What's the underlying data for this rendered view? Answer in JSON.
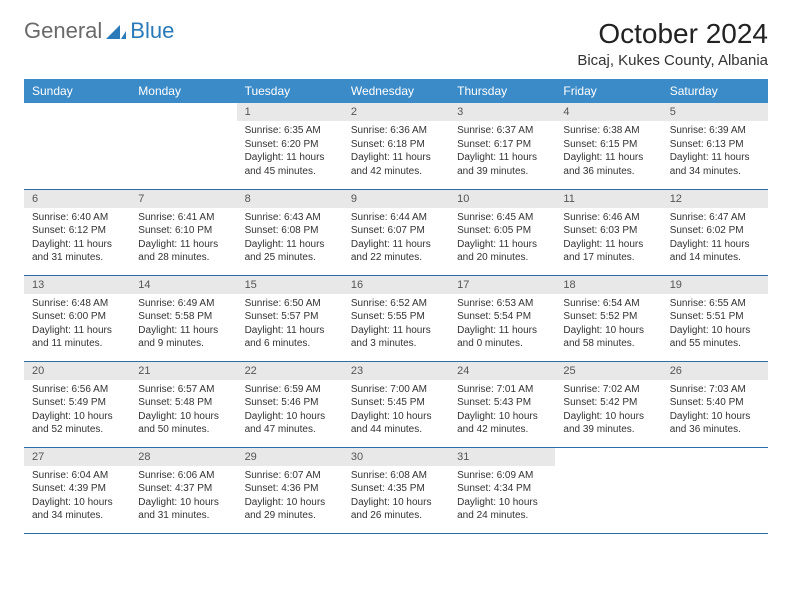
{
  "logo": {
    "part1": "General",
    "part2": "Blue"
  },
  "title": "October 2024",
  "location": "Bicaj, Kukes County, Albania",
  "colors": {
    "header_bg": "#3b8bc8",
    "header_text": "#ffffff",
    "daynum_bg": "#e8e8e8",
    "row_border": "#2a6ea5",
    "logo_gray": "#6a6a6a",
    "logo_blue": "#2a7ab9"
  },
  "weekdays": [
    "Sunday",
    "Monday",
    "Tuesday",
    "Wednesday",
    "Thursday",
    "Friday",
    "Saturday"
  ],
  "weeks": [
    [
      null,
      null,
      {
        "n": "1",
        "sr": "6:35 AM",
        "ss": "6:20 PM",
        "dl": "11 hours and 45 minutes."
      },
      {
        "n": "2",
        "sr": "6:36 AM",
        "ss": "6:18 PM",
        "dl": "11 hours and 42 minutes."
      },
      {
        "n": "3",
        "sr": "6:37 AM",
        "ss": "6:17 PM",
        "dl": "11 hours and 39 minutes."
      },
      {
        "n": "4",
        "sr": "6:38 AM",
        "ss": "6:15 PM",
        "dl": "11 hours and 36 minutes."
      },
      {
        "n": "5",
        "sr": "6:39 AM",
        "ss": "6:13 PM",
        "dl": "11 hours and 34 minutes."
      }
    ],
    [
      {
        "n": "6",
        "sr": "6:40 AM",
        "ss": "6:12 PM",
        "dl": "11 hours and 31 minutes."
      },
      {
        "n": "7",
        "sr": "6:41 AM",
        "ss": "6:10 PM",
        "dl": "11 hours and 28 minutes."
      },
      {
        "n": "8",
        "sr": "6:43 AM",
        "ss": "6:08 PM",
        "dl": "11 hours and 25 minutes."
      },
      {
        "n": "9",
        "sr": "6:44 AM",
        "ss": "6:07 PM",
        "dl": "11 hours and 22 minutes."
      },
      {
        "n": "10",
        "sr": "6:45 AM",
        "ss": "6:05 PM",
        "dl": "11 hours and 20 minutes."
      },
      {
        "n": "11",
        "sr": "6:46 AM",
        "ss": "6:03 PM",
        "dl": "11 hours and 17 minutes."
      },
      {
        "n": "12",
        "sr": "6:47 AM",
        "ss": "6:02 PM",
        "dl": "11 hours and 14 minutes."
      }
    ],
    [
      {
        "n": "13",
        "sr": "6:48 AM",
        "ss": "6:00 PM",
        "dl": "11 hours and 11 minutes."
      },
      {
        "n": "14",
        "sr": "6:49 AM",
        "ss": "5:58 PM",
        "dl": "11 hours and 9 minutes."
      },
      {
        "n": "15",
        "sr": "6:50 AM",
        "ss": "5:57 PM",
        "dl": "11 hours and 6 minutes."
      },
      {
        "n": "16",
        "sr": "6:52 AM",
        "ss": "5:55 PM",
        "dl": "11 hours and 3 minutes."
      },
      {
        "n": "17",
        "sr": "6:53 AM",
        "ss": "5:54 PM",
        "dl": "11 hours and 0 minutes."
      },
      {
        "n": "18",
        "sr": "6:54 AM",
        "ss": "5:52 PM",
        "dl": "10 hours and 58 minutes."
      },
      {
        "n": "19",
        "sr": "6:55 AM",
        "ss": "5:51 PM",
        "dl": "10 hours and 55 minutes."
      }
    ],
    [
      {
        "n": "20",
        "sr": "6:56 AM",
        "ss": "5:49 PM",
        "dl": "10 hours and 52 minutes."
      },
      {
        "n": "21",
        "sr": "6:57 AM",
        "ss": "5:48 PM",
        "dl": "10 hours and 50 minutes."
      },
      {
        "n": "22",
        "sr": "6:59 AM",
        "ss": "5:46 PM",
        "dl": "10 hours and 47 minutes."
      },
      {
        "n": "23",
        "sr": "7:00 AM",
        "ss": "5:45 PM",
        "dl": "10 hours and 44 minutes."
      },
      {
        "n": "24",
        "sr": "7:01 AM",
        "ss": "5:43 PM",
        "dl": "10 hours and 42 minutes."
      },
      {
        "n": "25",
        "sr": "7:02 AM",
        "ss": "5:42 PM",
        "dl": "10 hours and 39 minutes."
      },
      {
        "n": "26",
        "sr": "7:03 AM",
        "ss": "5:40 PM",
        "dl": "10 hours and 36 minutes."
      }
    ],
    [
      {
        "n": "27",
        "sr": "6:04 AM",
        "ss": "4:39 PM",
        "dl": "10 hours and 34 minutes."
      },
      {
        "n": "28",
        "sr": "6:06 AM",
        "ss": "4:37 PM",
        "dl": "10 hours and 31 minutes."
      },
      {
        "n": "29",
        "sr": "6:07 AM",
        "ss": "4:36 PM",
        "dl": "10 hours and 29 minutes."
      },
      {
        "n": "30",
        "sr": "6:08 AM",
        "ss": "4:35 PM",
        "dl": "10 hours and 26 minutes."
      },
      {
        "n": "31",
        "sr": "6:09 AM",
        "ss": "4:34 PM",
        "dl": "10 hours and 24 minutes."
      },
      null,
      null
    ]
  ]
}
